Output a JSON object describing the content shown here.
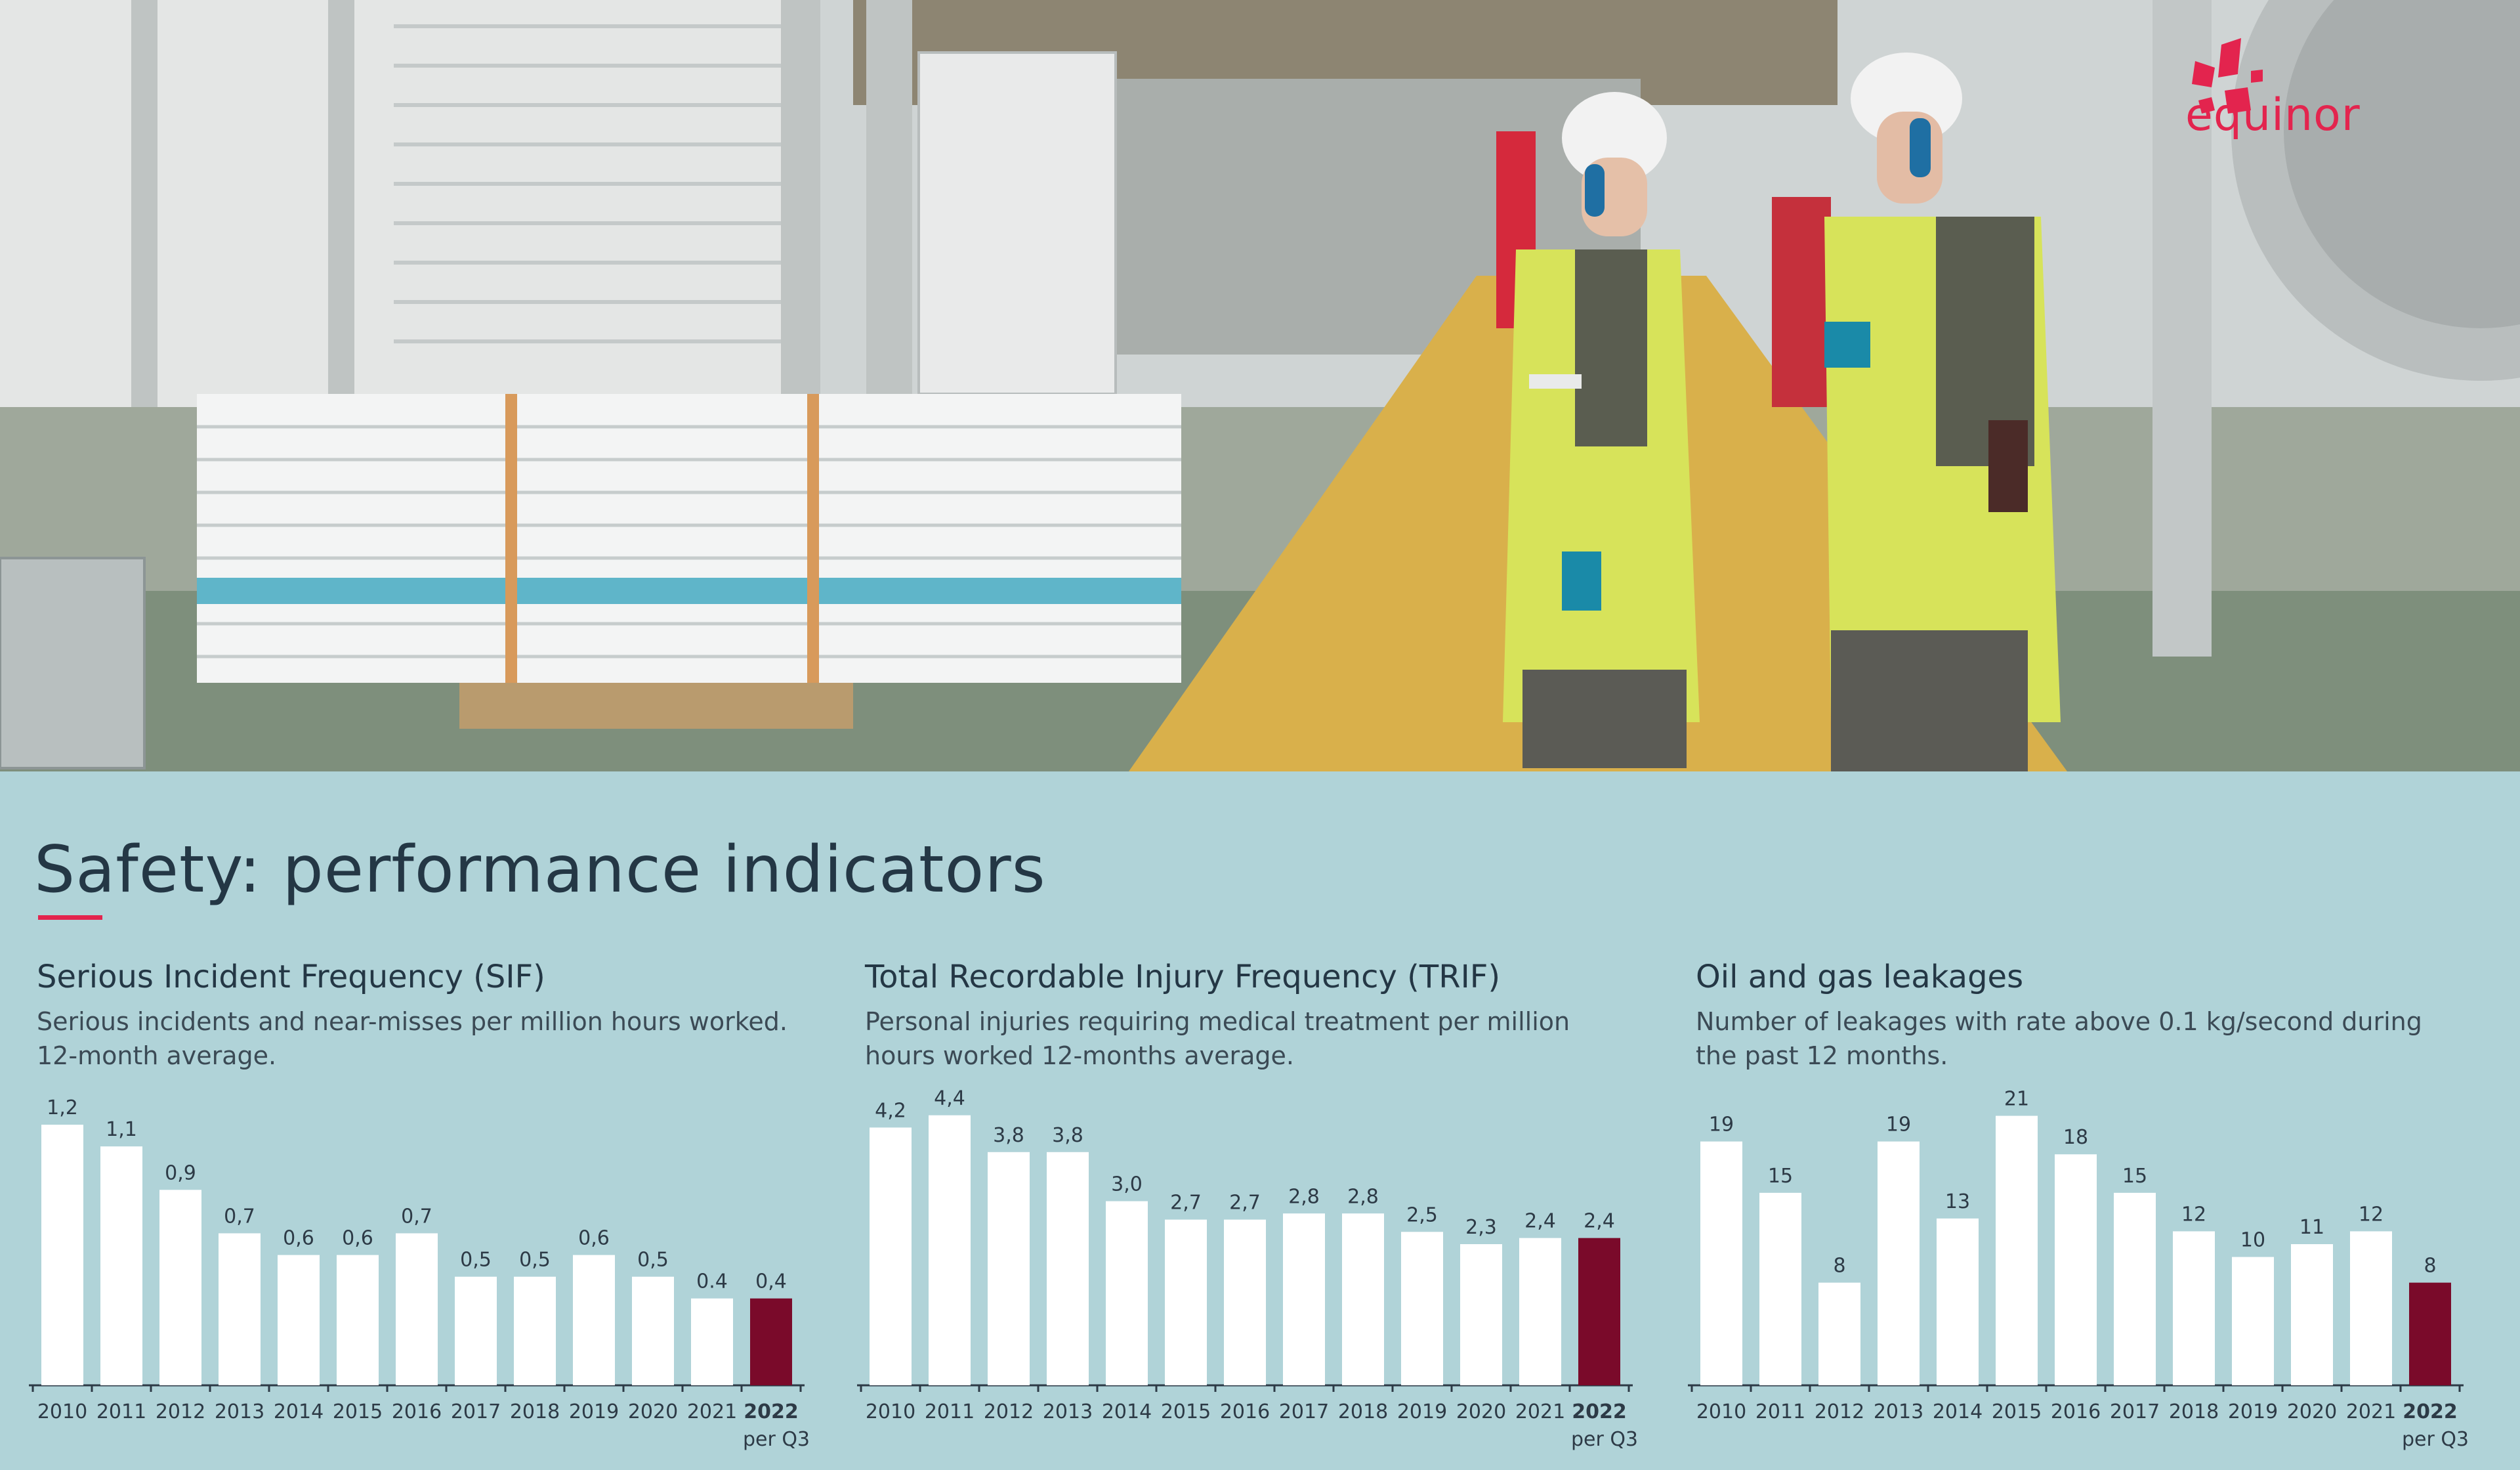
{
  "brand": {
    "logo_text": "equinor",
    "accent": "#e3244e",
    "highlight_bar": "#7a0a2a",
    "bar": "#ffffff",
    "background": "#b0d3d8"
  },
  "title": "Safety: performance indicators",
  "chart_data": [
    {
      "type": "bar",
      "title": "Serious Incident Frequency (SIF)",
      "subtitle": "Serious incidents and near-misses per million hours worked. 12-month average.",
      "categories": [
        "2010",
        "2011",
        "2012",
        "2013",
        "2014",
        "2015",
        "2016",
        "2017",
        "2018",
        "2019",
        "2020",
        "2021",
        "2022"
      ],
      "last_category_note": "per Q3",
      "values": [
        1.2,
        1.1,
        0.9,
        0.7,
        0.6,
        0.6,
        0.7,
        0.5,
        0.5,
        0.6,
        0.5,
        0.4,
        0.4
      ],
      "value_labels": [
        "1,2",
        "1,1",
        "0,9",
        "0,7",
        "0,6",
        "0,6",
        "0,7",
        "0,5",
        "0,5",
        "0,6",
        "0,5",
        "0.4",
        "0,4"
      ],
      "highlight_index": 12,
      "ylim": [
        0,
        1.3
      ],
      "grid": false
    },
    {
      "type": "bar",
      "title": "Total Recordable Injury Frequency (TRIF)",
      "subtitle": "Personal injuries requiring medical treatment per million hours worked 12-months average.",
      "categories": [
        "2010",
        "2011",
        "2012",
        "2013",
        "2014",
        "2015",
        "2016",
        "2017",
        "2018",
        "2019",
        "2020",
        "2021",
        "2022"
      ],
      "last_category_note": "per Q3",
      "values": [
        4.2,
        4.4,
        3.8,
        3.8,
        3.0,
        2.7,
        2.7,
        2.8,
        2.8,
        2.5,
        2.3,
        2.4,
        2.4
      ],
      "value_labels": [
        "4,2",
        "4,4",
        "3,8",
        "3,8",
        "3,0",
        "2,7",
        "2,7",
        "2,8",
        "2,8",
        "2,5",
        "2,3",
        "2,4",
        "2,4"
      ],
      "highlight_index": 12,
      "ylim": [
        0,
        4.6
      ],
      "grid": false
    },
    {
      "type": "bar",
      "title": "Oil and gas leakages",
      "subtitle": "Number of leakages with rate above 0.1 kg/second during the past 12 months.",
      "categories": [
        "2010",
        "2011",
        "2012",
        "2013",
        "2014",
        "2015",
        "2016",
        "2017",
        "2018",
        "2019",
        "2020",
        "2021",
        "2022"
      ],
      "last_category_note": "per Q3",
      "values": [
        19,
        15,
        8,
        19,
        13,
        21,
        18,
        15,
        12,
        10,
        11,
        12,
        8
      ],
      "value_labels": [
        "19",
        "15",
        "8",
        "19",
        "13",
        "21",
        "18",
        "15",
        "12",
        "10",
        "11",
        "12",
        "8"
      ],
      "highlight_index": 12,
      "ylim": [
        0,
        22
      ],
      "grid": false
    }
  ]
}
